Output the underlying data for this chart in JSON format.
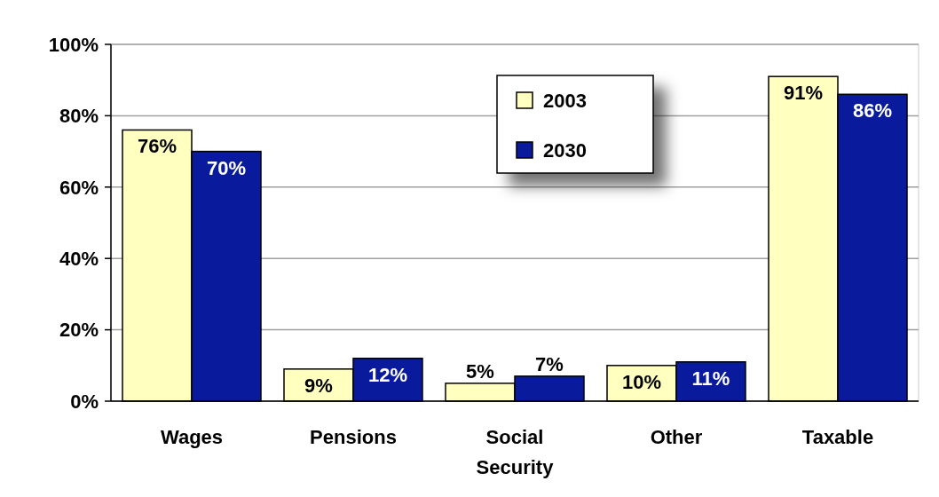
{
  "chart_data": {
    "type": "bar",
    "categories": [
      "Wages",
      "Pensions",
      "Social Security",
      "Other",
      "Taxable"
    ],
    "series": [
      {
        "name": "2003",
        "color": "#ffffc0",
        "values": [
          76,
          9,
          5,
          10,
          91
        ],
        "value_labels": [
          "76%",
          "9%",
          "5%",
          "10%",
          "91%"
        ]
      },
      {
        "name": "2030",
        "color": "#0a1a9c",
        "values": [
          70,
          12,
          7,
          11,
          86
        ],
        "value_labels": [
          "70%",
          "12%",
          "7%",
          "11%",
          "86%"
        ]
      }
    ],
    "ylim": [
      0,
      100
    ],
    "yticks": [
      {
        "value": 0,
        "label": "0%"
      },
      {
        "value": 20,
        "label": "20%"
      },
      {
        "value": 40,
        "label": "40%"
      },
      {
        "value": 60,
        "label": "60%"
      },
      {
        "value": 80,
        "label": "80%"
      },
      {
        "value": 100,
        "label": "100%"
      }
    ],
    "grid": "y",
    "legend": "top"
  }
}
